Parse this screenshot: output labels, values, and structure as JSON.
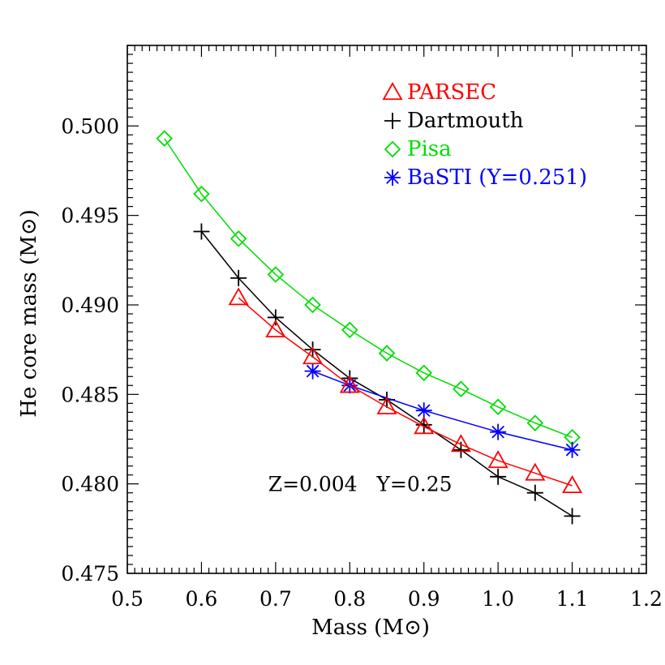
{
  "chart_data": {
    "type": "line",
    "title": "",
    "xlabel": "Mass (M⊙)",
    "ylabel": "He core mass (M⊙)",
    "xlim": [
      0.5,
      1.2
    ],
    "ylim": [
      0.475,
      0.5045
    ],
    "xticks": [
      0.5,
      0.6,
      0.7,
      0.8,
      0.9,
      1.0,
      1.1,
      1.2
    ],
    "xtick_labels": [
      "0.5",
      "0.6",
      "0.7",
      "0.8",
      "0.9",
      "1.0",
      "1.1",
      "1.2"
    ],
    "yticks": [
      0.475,
      0.48,
      0.485,
      0.49,
      0.495,
      0.5
    ],
    "ytick_labels": [
      "0.475",
      "0.480",
      "0.485",
      "0.490",
      "0.495",
      "0.500"
    ],
    "legend_position": "top-right",
    "annotation": "Z=0.004   Y=0.25",
    "series": [
      {
        "name": "PARSEC",
        "color": "#ff0000",
        "marker": "triangle",
        "x": [
          0.65,
          0.7,
          0.75,
          0.8,
          0.85,
          0.9,
          0.95,
          1.0,
          1.05,
          1.1
        ],
        "y": [
          0.4904,
          0.4886,
          0.4871,
          0.4855,
          0.4843,
          0.4832,
          0.4822,
          0.4813,
          0.4806,
          0.4799
        ]
      },
      {
        "name": "Dartmouth",
        "color": "#000000",
        "marker": "plus",
        "x": [
          0.6,
          0.65,
          0.7,
          0.75,
          0.8,
          0.85,
          0.9,
          0.95,
          1.0,
          1.05,
          1.1
        ],
        "y": [
          0.4941,
          0.4915,
          0.4893,
          0.4875,
          0.4859,
          0.4847,
          0.4833,
          0.4819,
          0.4804,
          0.4795,
          0.4782
        ]
      },
      {
        "name": "Pisa",
        "color": "#00dd00",
        "marker": "diamond",
        "x": [
          0.55,
          0.6,
          0.65,
          0.7,
          0.75,
          0.8,
          0.85,
          0.9,
          0.95,
          1.0,
          1.05,
          1.1
        ],
        "y": [
          0.4993,
          0.4962,
          0.4937,
          0.4917,
          0.49,
          0.4886,
          0.4873,
          0.4862,
          0.4853,
          0.4843,
          0.4834,
          0.4826
        ]
      },
      {
        "name": "BaSTI (Y=0.251)",
        "color": "#0000ff",
        "marker": "asterisk",
        "x": [
          0.75,
          0.8,
          0.9,
          1.0,
          1.1
        ],
        "y": [
          0.4863,
          0.4855,
          0.4841,
          0.4829,
          0.4819
        ]
      }
    ]
  }
}
